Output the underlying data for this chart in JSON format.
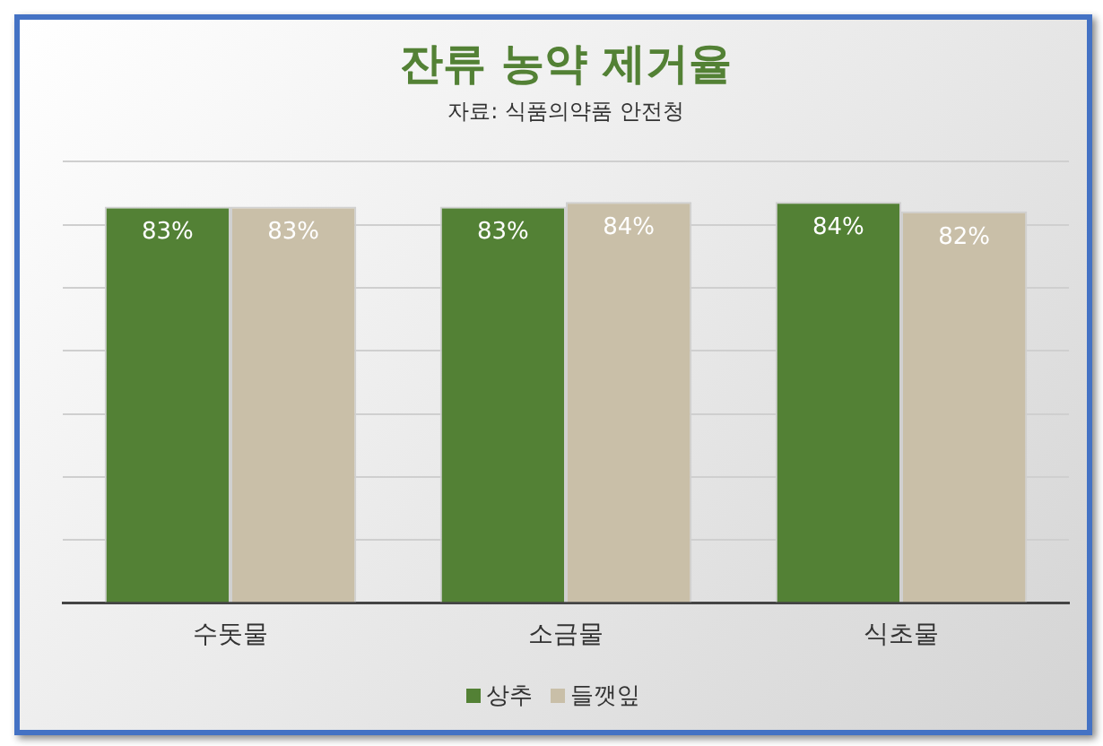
{
  "chart_data": {
    "type": "bar",
    "title": "잔류 농약 제거율",
    "subtitle": "자료: 식품의약품 안전청",
    "categories": [
      "수돗물",
      "소금물",
      "식초물"
    ],
    "series": [
      {
        "name": "상추",
        "color": "#538135",
        "values": [
          83,
          83,
          84
        ],
        "value_labels": [
          "83%",
          "83%",
          "84%"
        ]
      },
      {
        "name": "들깻잎",
        "color": "#c9bfa8",
        "values": [
          83,
          84,
          82
        ],
        "value_labels": [
          "83%",
          "84%",
          "82%"
        ]
      }
    ],
    "ylim": [
      0,
      92.4
    ],
    "yticks": [
      {
        "value": 0,
        "label": null
      },
      {
        "value": 13.2,
        "label": null
      },
      {
        "value": 26.4,
        "label": null
      },
      {
        "value": 39.6,
        "label": null
      },
      {
        "value": 52.8,
        "label": null
      },
      {
        "value": 66,
        "label": null
      },
      {
        "value": 79.2,
        "label": null
      },
      {
        "value": 92.4,
        "label": null
      }
    ],
    "tick_labels": "x",
    "grid": "y",
    "legend": "bottom"
  }
}
